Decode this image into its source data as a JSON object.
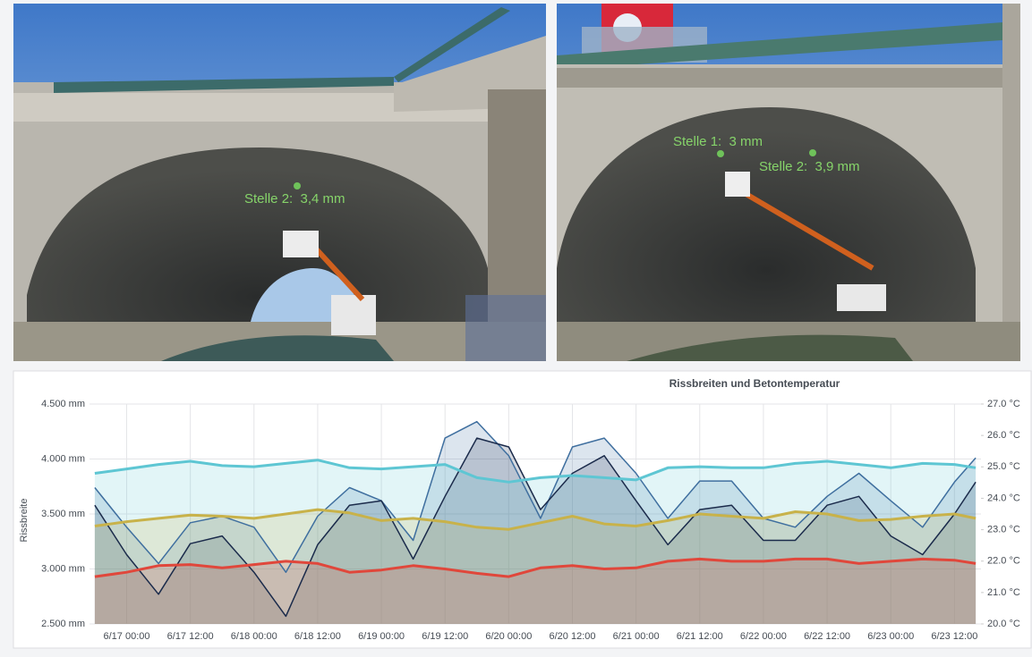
{
  "photos": [
    {
      "annotations": [
        {
          "label": "Stelle 2:  3,4 mm"
        }
      ]
    },
    {
      "annotations": [
        {
          "label": "Stelle 1:  3 mm"
        },
        {
          "label": "Stelle 2:  3,9 mm"
        }
      ]
    }
  ],
  "chart_data": {
    "type": "line",
    "title": "Rissbreiten und Betontemperatur",
    "y_label": "Rissbreite",
    "x": [
      "6/16 18:00",
      "6/17 00:00",
      "6/17 06:00",
      "6/17 12:00",
      "6/17 18:00",
      "6/18 00:00",
      "6/18 06:00",
      "6/18 12:00",
      "6/18 18:00",
      "6/19 00:00",
      "6/19 06:00",
      "6/19 12:00",
      "6/19 18:00",
      "6/20 00:00",
      "6/20 06:00",
      "6/20 12:00",
      "6/20 18:00",
      "6/21 00:00",
      "6/21 06:00",
      "6/21 12:00",
      "6/21 18:00",
      "6/22 00:00",
      "6/22 06:00",
      "6/22 12:00",
      "6/22 18:00",
      "6/23 00:00",
      "6/23 06:00",
      "6/23 12:00",
      "6/23 16:00"
    ],
    "xlim": [
      "6/16 17:00",
      "6/23 17:00"
    ],
    "xticks": [
      "6/17 00:00",
      "6/17 12:00",
      "6/18 00:00",
      "6/18 12:00",
      "6/19 00:00",
      "6/19 12:00",
      "6/20 00:00",
      "6/20 12:00",
      "6/21 00:00",
      "6/21 12:00",
      "6/22 00:00",
      "6/22 12:00",
      "6/23 00:00",
      "6/23 12:00"
    ],
    "ylim": [
      2500,
      4500
    ],
    "yticks": [
      {
        "value": 2500,
        "label": "2.500 mm"
      },
      {
        "value": 3000,
        "label": "3.000 mm"
      },
      {
        "value": 3500,
        "label": "3.500 mm"
      },
      {
        "value": 4000,
        "label": "4.000 mm"
      },
      {
        "value": 4500,
        "label": "4.500 mm"
      }
    ],
    "y2lim": [
      20,
      27
    ],
    "y2ticks": [
      {
        "value": 20,
        "label": "20.0 °C"
      },
      {
        "value": 21,
        "label": "21.0 °C"
      },
      {
        "value": 22,
        "label": "22.0 °C"
      },
      {
        "value": 23,
        "label": "23.0 °C"
      },
      {
        "value": 24,
        "label": "24.0 °C"
      },
      {
        "value": 25,
        "label": "25.0 °C"
      },
      {
        "value": 26,
        "label": "26.0 °C"
      },
      {
        "value": 27,
        "label": "27.0 °C"
      }
    ],
    "grid": true,
    "series": [
      {
        "color": "#3f6f9f",
        "values": [
          3740,
          3380,
          3050,
          3420,
          3480,
          3380,
          2970,
          3480,
          3740,
          3620,
          3260,
          4190,
          4340,
          4030,
          3460,
          4110,
          4190,
          3870,
          3460,
          3800,
          3800,
          3460,
          3380,
          3660,
          3870,
          3620,
          3380,
          3790,
          4010
        ]
      },
      {
        "color": "#1b2b4b",
        "values": [
          3580,
          3130,
          2770,
          3230,
          3300,
          2970,
          2570,
          3220,
          3580,
          3620,
          3090,
          3660,
          4190,
          4110,
          3540,
          3870,
          4030,
          3620,
          3220,
          3540,
          3580,
          3260,
          3260,
          3580,
          3660,
          3300,
          3130,
          3500,
          3790
        ]
      },
      {
        "color": "#5ec6d3",
        "values": [
          3870,
          3910,
          3950,
          3980,
          3940,
          3930,
          3960,
          3990,
          3920,
          3910,
          3930,
          3950,
          3830,
          3790,
          3830,
          3850,
          3830,
          3810,
          3920,
          3930,
          3920,
          3920,
          3960,
          3980,
          3950,
          3920,
          3960,
          3950,
          3920
        ]
      },
      {
        "color": "#c8b24a",
        "values": [
          3390,
          3430,
          3460,
          3490,
          3480,
          3460,
          3500,
          3540,
          3510,
          3440,
          3460,
          3430,
          3380,
          3360,
          3420,
          3480,
          3410,
          3390,
          3440,
          3500,
          3480,
          3460,
          3520,
          3500,
          3440,
          3450,
          3480,
          3500,
          3460
        ]
      },
      {
        "color": "#e0473b",
        "values": [
          2930,
          2970,
          3030,
          3040,
          3010,
          3040,
          3070,
          3050,
          2970,
          2990,
          3030,
          3000,
          2960,
          2930,
          3010,
          3030,
          3000,
          3010,
          3070,
          3090,
          3070,
          3070,
          3090,
          3090,
          3050,
          3070,
          3090,
          3080,
          3050
        ]
      }
    ]
  }
}
